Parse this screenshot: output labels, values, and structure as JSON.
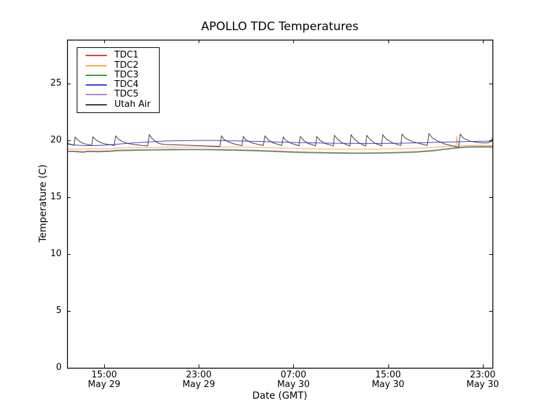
{
  "chart_data": {
    "type": "line",
    "title": "APOLLO TDC Temperatures",
    "xlabel": "Date (GMT)",
    "ylabel": "Temperature (C)",
    "grid": false,
    "legend_position": "upper left",
    "axis_color": "#000000",
    "x_unit": "hours since May 29 00:00 GMT",
    "xlim": [
      11.87,
      47.83
    ],
    "ylim": [
      0,
      28.86
    ],
    "yticks": [
      0,
      5,
      10,
      15,
      20,
      25
    ],
    "xticks": [
      {
        "hour": 15,
        "time": "15:00",
        "date": "May 29"
      },
      {
        "hour": 23,
        "time": "23:00",
        "date": "May 29"
      },
      {
        "hour": 31,
        "time": "07:00",
        "date": "May 30"
      },
      {
        "hour": 39,
        "time": "15:00",
        "date": "May 30"
      },
      {
        "hour": 47,
        "time": "23:00",
        "date": "May 30"
      }
    ],
    "series": [
      {
        "name": "TDC1",
        "color": "#dd3a3a",
        "points": [
          [
            11.87,
            19.06
          ],
          [
            12.7,
            19.04
          ],
          [
            13.2,
            18.99
          ],
          [
            13.6,
            19.05
          ],
          [
            14.5,
            19.04
          ],
          [
            15.5,
            19.07
          ],
          [
            16.1,
            19.13
          ],
          [
            17.5,
            19.16
          ],
          [
            19,
            19.18
          ],
          [
            20.5,
            19.2
          ],
          [
            22,
            19.21
          ],
          [
            23.5,
            19.21
          ],
          [
            25,
            19.19
          ],
          [
            26.5,
            19.16
          ],
          [
            28,
            19.11
          ],
          [
            29.5,
            19.05
          ],
          [
            31,
            18.99
          ],
          [
            32.5,
            18.95
          ],
          [
            34,
            18.92
          ],
          [
            35.5,
            18.9
          ],
          [
            37,
            18.89
          ],
          [
            38.5,
            18.91
          ],
          [
            40,
            18.95
          ],
          [
            41.5,
            19.01
          ],
          [
            42.8,
            19.11
          ],
          [
            43.8,
            19.24
          ],
          [
            44.8,
            19.37
          ],
          [
            45.8,
            19.44
          ],
          [
            46.8,
            19.46
          ],
          [
            47.83,
            19.44
          ]
        ]
      },
      {
        "name": "TDC2",
        "color": "#ffaa44",
        "points": [
          [
            11.87,
            19.27
          ],
          [
            12.5,
            19.26
          ],
          [
            13,
            19.21
          ],
          [
            13.5,
            19.27
          ],
          [
            14.5,
            19.26
          ],
          [
            15.5,
            19.28
          ],
          [
            16,
            19.33
          ],
          [
            17,
            19.35
          ],
          [
            18,
            19.36
          ],
          [
            19,
            19.38
          ],
          [
            20,
            19.4
          ],
          [
            21.5,
            19.42
          ],
          [
            23,
            19.43
          ],
          [
            24.5,
            19.43
          ],
          [
            26,
            19.42
          ],
          [
            27.5,
            19.4
          ],
          [
            29,
            19.36
          ],
          [
            30.5,
            19.32
          ],
          [
            32,
            19.28
          ],
          [
            33.5,
            19.25
          ],
          [
            35,
            19.23
          ],
          [
            36.5,
            19.22
          ],
          [
            38,
            19.23
          ],
          [
            39.5,
            19.26
          ],
          [
            41,
            19.3
          ],
          [
            42.5,
            19.36
          ],
          [
            43.5,
            19.43
          ],
          [
            44.4,
            19.5
          ],
          [
            44.75,
            19.53
          ],
          [
            44.82,
            20.4
          ],
          [
            44.9,
            19.54
          ],
          [
            45.8,
            19.57
          ],
          [
            46.8,
            19.58
          ],
          [
            47.83,
            19.56
          ]
        ]
      },
      {
        "name": "TDC3",
        "color": "#3a9b3a",
        "points": [
          [
            11.87,
            19.02
          ],
          [
            12.7,
            19.0
          ],
          [
            13.2,
            18.95
          ],
          [
            13.6,
            19.01
          ],
          [
            14.5,
            19.0
          ],
          [
            15.5,
            19.03
          ],
          [
            16.1,
            19.09
          ],
          [
            17.5,
            19.12
          ],
          [
            19,
            19.14
          ],
          [
            20.5,
            19.16
          ],
          [
            22,
            19.17
          ],
          [
            23.5,
            19.17
          ],
          [
            25,
            19.15
          ],
          [
            26.5,
            19.12
          ],
          [
            28,
            19.07
          ],
          [
            29.5,
            19.01
          ],
          [
            31,
            18.95
          ],
          [
            32.5,
            18.91
          ],
          [
            34,
            18.88
          ],
          [
            35.5,
            18.86
          ],
          [
            37,
            18.85
          ],
          [
            38.5,
            18.87
          ],
          [
            40,
            18.91
          ],
          [
            41.5,
            18.97
          ],
          [
            42.8,
            19.07
          ],
          [
            43.8,
            19.2
          ],
          [
            44.8,
            19.33
          ],
          [
            45.8,
            19.4
          ],
          [
            46.8,
            19.42
          ],
          [
            47.83,
            19.4
          ]
        ]
      },
      {
        "name": "TDC4",
        "color": "#3b3bea",
        "points": [
          [
            11.87,
            19.68
          ],
          [
            12.5,
            19.6
          ],
          [
            13.3,
            19.55
          ],
          [
            14.2,
            19.55
          ],
          [
            15.2,
            19.6
          ],
          [
            16.2,
            19.68
          ],
          [
            17.2,
            19.76
          ],
          [
            18.2,
            19.84
          ],
          [
            19.2,
            19.9
          ],
          [
            20.2,
            19.95
          ],
          [
            21.5,
            19.98
          ],
          [
            23,
            20.0
          ],
          [
            24.5,
            20.0
          ],
          [
            26,
            19.97
          ],
          [
            27.5,
            19.93
          ],
          [
            29,
            19.88
          ],
          [
            30.5,
            19.84
          ],
          [
            32,
            19.8
          ],
          [
            33.5,
            19.77
          ],
          [
            35,
            19.75
          ],
          [
            36.5,
            19.74
          ],
          [
            38,
            19.74
          ],
          [
            39.5,
            19.75
          ],
          [
            41,
            19.78
          ],
          [
            42.5,
            19.82
          ],
          [
            44,
            19.86
          ],
          [
            45.5,
            19.9
          ],
          [
            46.8,
            19.93
          ],
          [
            47.83,
            19.94
          ]
        ]
      },
      {
        "name": "TDC5",
        "color": "#b287d2",
        "points": [
          [
            11.87,
            19.09
          ],
          [
            12.7,
            19.07
          ],
          [
            13.2,
            19.02
          ],
          [
            13.6,
            19.08
          ],
          [
            14.5,
            19.07
          ],
          [
            15.5,
            19.1
          ],
          [
            16.1,
            19.16
          ],
          [
            17.5,
            19.19
          ],
          [
            19,
            19.21
          ],
          [
            20.5,
            19.23
          ],
          [
            22,
            19.24
          ],
          [
            23.5,
            19.24
          ],
          [
            25,
            19.22
          ],
          [
            26.5,
            19.19
          ],
          [
            28,
            19.14
          ],
          [
            29.5,
            19.08
          ],
          [
            31,
            19.02
          ],
          [
            32.5,
            18.98
          ],
          [
            34,
            18.95
          ],
          [
            35.5,
            18.93
          ],
          [
            37,
            18.92
          ],
          [
            38.5,
            18.94
          ],
          [
            40,
            18.98
          ],
          [
            41.5,
            19.04
          ],
          [
            42.8,
            19.14
          ],
          [
            43.8,
            19.27
          ],
          [
            44.8,
            19.4
          ],
          [
            45.8,
            19.47
          ],
          [
            46.8,
            19.49
          ],
          [
            47.83,
            19.47
          ]
        ]
      },
      {
        "name": "Utah Air",
        "color": "#3a3a3a",
        "points": [
          [
            11.87,
            19.78
          ],
          [
            12.05,
            19.7
          ],
          [
            12.3,
            19.62
          ],
          [
            12.45,
            19.57
          ],
          [
            12.55,
            20.3
          ],
          [
            12.7,
            20.12
          ],
          [
            12.95,
            19.9
          ],
          [
            13.3,
            19.72
          ],
          [
            13.7,
            19.62
          ],
          [
            13.95,
            19.57
          ],
          [
            14.05,
            20.32
          ],
          [
            14.25,
            20.1
          ],
          [
            14.55,
            19.88
          ],
          [
            14.95,
            19.72
          ],
          [
            15.5,
            19.62
          ],
          [
            15.85,
            19.55
          ],
          [
            15.97,
            20.4
          ],
          [
            16.2,
            20.12
          ],
          [
            16.55,
            19.9
          ],
          [
            16.95,
            19.75
          ],
          [
            17.5,
            19.64
          ],
          [
            18.2,
            19.57
          ],
          [
            18.68,
            19.52
          ],
          [
            18.82,
            20.5
          ],
          [
            19.05,
            20.18
          ],
          [
            19.35,
            19.9
          ],
          [
            19.65,
            19.73
          ],
          [
            20.1,
            19.65
          ],
          [
            21,
            19.61
          ],
          [
            22,
            19.58
          ],
          [
            23,
            19.55
          ],
          [
            24,
            19.51
          ],
          [
            24.78,
            19.47
          ],
          [
            24.92,
            20.4
          ],
          [
            25.15,
            20.08
          ],
          [
            25.55,
            19.85
          ],
          [
            26.05,
            19.68
          ],
          [
            26.5,
            19.58
          ],
          [
            26.65,
            19.54
          ],
          [
            26.77,
            20.35
          ],
          [
            27,
            20.03
          ],
          [
            27.45,
            19.8
          ],
          [
            28.05,
            19.64
          ],
          [
            28.45,
            19.56
          ],
          [
            28.6,
            20.4
          ],
          [
            28.85,
            20.08
          ],
          [
            29.25,
            19.8
          ],
          [
            29.75,
            19.64
          ],
          [
            30.02,
            19.56
          ],
          [
            30.14,
            20.3
          ],
          [
            30.4,
            19.98
          ],
          [
            30.85,
            19.73
          ],
          [
            31.32,
            19.59
          ],
          [
            31.47,
            19.53
          ],
          [
            31.58,
            20.35
          ],
          [
            31.85,
            20.02
          ],
          [
            32.25,
            19.74
          ],
          [
            32.72,
            19.58
          ],
          [
            32.87,
            19.53
          ],
          [
            32.97,
            20.35
          ],
          [
            33.25,
            20.02
          ],
          [
            33.65,
            19.74
          ],
          [
            34.22,
            19.57
          ],
          [
            34.37,
            19.52
          ],
          [
            34.47,
            20.45
          ],
          [
            34.75,
            20.08
          ],
          [
            35.15,
            19.78
          ],
          [
            35.62,
            19.58
          ],
          [
            35.77,
            19.52
          ],
          [
            35.87,
            20.5
          ],
          [
            36.15,
            20.12
          ],
          [
            36.55,
            19.78
          ],
          [
            36.97,
            19.58
          ],
          [
            37.1,
            19.53
          ],
          [
            37.2,
            20.45
          ],
          [
            37.48,
            20.08
          ],
          [
            37.88,
            19.76
          ],
          [
            38.32,
            19.58
          ],
          [
            38.45,
            19.53
          ],
          [
            38.55,
            20.5
          ],
          [
            38.85,
            20.12
          ],
          [
            39.35,
            19.8
          ],
          [
            39.92,
            19.6
          ],
          [
            40.07,
            19.54
          ],
          [
            40.18,
            20.55
          ],
          [
            40.5,
            20.18
          ],
          [
            41.05,
            19.9
          ],
          [
            41.85,
            19.68
          ],
          [
            42.32,
            19.56
          ],
          [
            42.45,
            20.6
          ],
          [
            42.75,
            20.22
          ],
          [
            43.25,
            19.92
          ],
          [
            43.85,
            19.67
          ],
          [
            44.55,
            19.5
          ],
          [
            44.97,
            19.4
          ],
          [
            45.1,
            20.55
          ],
          [
            45.4,
            20.18
          ],
          [
            45.95,
            19.93
          ],
          [
            46.55,
            19.83
          ],
          [
            47.15,
            19.78
          ],
          [
            47.5,
            19.8
          ],
          [
            47.7,
            19.92
          ],
          [
            47.83,
            20.22
          ]
        ]
      }
    ]
  }
}
